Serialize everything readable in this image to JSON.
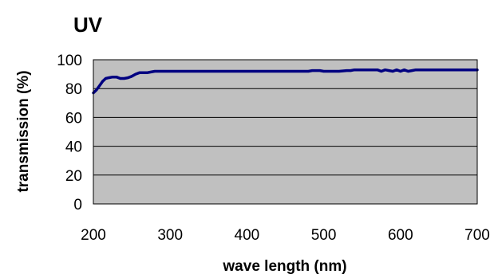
{
  "chart_data": {
    "type": "line",
    "title": "UV",
    "xlabel": "wave length (nm)",
    "ylabel": "transmission (%)",
    "xlim": [
      200,
      700
    ],
    "ylim": [
      0,
      100
    ],
    "xticks": [
      200,
      300,
      400,
      500,
      600,
      700
    ],
    "yticks": [
      0,
      20,
      40,
      60,
      80,
      100
    ],
    "xtick_labels": [
      "200",
      "300",
      "400",
      "500",
      "600",
      "700"
    ],
    "ytick_labels": [
      "0",
      "20",
      "40",
      "60",
      "80",
      "100"
    ],
    "grid": "horizontal",
    "legend": "none",
    "colors": {
      "plot_background": "#c0c0c0",
      "series_line": "#000080",
      "grid": "#000000"
    },
    "series": [
      {
        "x": [
          200,
          204,
          208,
          212,
          216,
          220,
          225,
          230,
          235,
          240,
          245,
          250,
          255,
          260,
          265,
          270,
          275,
          280,
          300,
          350,
          400,
          450,
          480,
          485,
          490,
          495,
          500,
          520,
          530,
          535,
          540,
          560,
          570,
          575,
          580,
          585,
          590,
          595,
          600,
          605,
          610,
          615,
          620,
          650,
          700
        ],
        "y": [
          77,
          79,
          82,
          85,
          87,
          87.5,
          88,
          88,
          87,
          87,
          87.5,
          88.5,
          90,
          91,
          91,
          91,
          91.5,
          92,
          92,
          92,
          92,
          92,
          92,
          92.5,
          92.5,
          92.5,
          92,
          92,
          92.5,
          92.5,
          93,
          93,
          93,
          92,
          93,
          92.5,
          92,
          93,
          92,
          93,
          92,
          92.5,
          93,
          93,
          93
        ]
      }
    ]
  }
}
